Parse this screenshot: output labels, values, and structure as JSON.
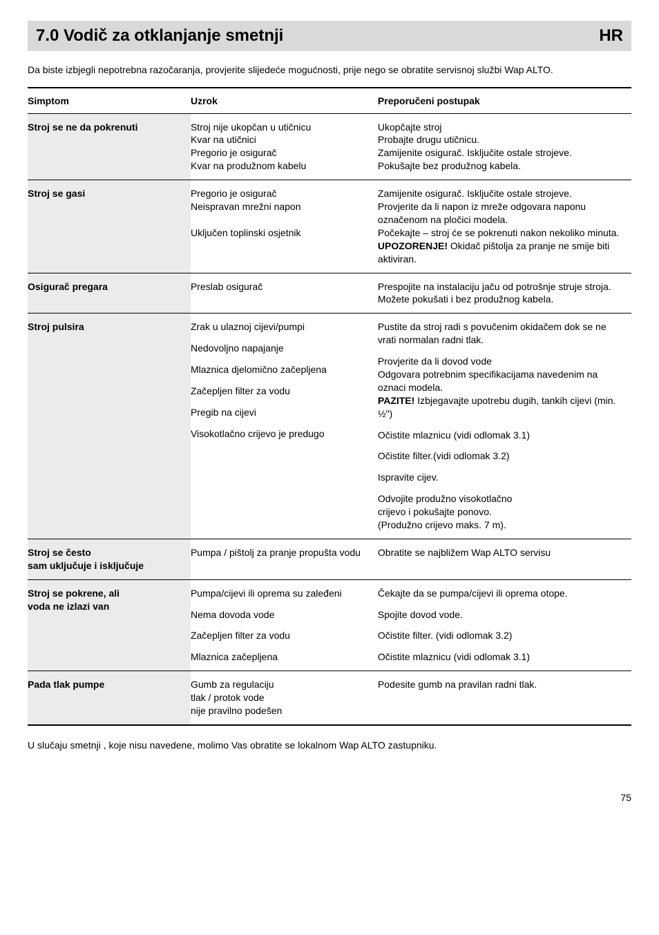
{
  "header": {
    "title": "7.0  Vodič za otklanjanje smetnji",
    "lang": "HR"
  },
  "intro": "Da biste izbjegli nepotrebna razočaranja, provjerite slijedeće mogućnosti, prije nego se obratite servisnoj službi Wap ALTO.",
  "table": {
    "headers": {
      "c1": "Simptom",
      "c2": "Uzrok",
      "c3": "Preporučeni postupak"
    },
    "rows": [
      {
        "sym": "Stroj se ne da pokrenuti",
        "uzrok": [
          "Stroj nije ukopčan u utičnicu",
          "Kvar na utičnici",
          "Pregorio je osigurač",
          "Kvar na produžnom kabelu"
        ],
        "post": [
          "Ukopčajte stroj",
          "Probajte drugu utičnicu.",
          "Zamijenite osigurač. Isključite ostale strojeve.",
          "Pokušajte bez produžnog kabela."
        ]
      },
      {
        "sym": "Stroj se gasi",
        "uzrok": [
          "Pregorio je osigurač",
          "Neispravan mrežni napon",
          "",
          "Uključen toplinski osjetnik"
        ],
        "post_html": "Zamijenite osigurač. Isključite ostale strojeve.<br>Provjerite da li napon iz mreže odgovara naponu označenom na pločici modela.<br>Počekajte – stroj će se pokrenuti nakon nekoliko minuta.<br><b>UPOZORENJE!</b> Okidač  pištolja za pranje ne smije biti aktiviran."
      },
      {
        "sym": "Osigurač pregara",
        "uzrok": [
          "Preslab osigurač"
        ],
        "post": [
          "Prespojite na instalaciju jaču od potrošnje struje stroja.",
          "Možete pokušati i bez produžnog kabela."
        ]
      },
      {
        "sym": "Stroj pulsira",
        "uzrok_blocks": [
          "Zrak u ulaznoj cijevi/pumpi",
          "Nedovoljno napajanje",
          "Mlaznica djelomično začepljena",
          "Začepljen filter za vodu",
          "Pregib na cijevi",
          "Visokotlačno crijevo je predugo"
        ],
        "post_blocks_html": [
          "Pustite da stroj radi s povučenim okidačem dok se ne vrati normalan radni tlak.",
          "Provjerite da li dovod vode<br>Odgovara potrebnim specifikacijama navedenim na oznaci modela.<br><b>PAZITE!</b> Izbjegavajte upotrebu dugih, tankih cijevi (min. ½\")",
          "Očistite mlaznicu (vidi odlomak 3.1)",
          "Očistite filter.(vidi odlomak 3.2)",
          "Ispravite cijev.",
          "Odvojite produžno visokotlačno<br>crijevo i pokušajte ponovo.<br>(Produžno crijevo maks. 7 m)."
        ]
      },
      {
        "sym": "Stroj se često\nsam uključuje i isključuje",
        "uzrok": [
          "Pumpa / pištolj za pranje propušta vodu"
        ],
        "post": [
          "Obratite se najbližem Wap ALTO servisu"
        ]
      },
      {
        "sym": "Stroj se pokrene, ali\nvoda ne izlazi van",
        "uzrok_blocks": [
          "Pumpa/cijevi ili oprema su zaleđeni",
          "Nema dovoda vode",
          "Začepljen filter za vodu",
          "Mlaznica začepljena"
        ],
        "post_blocks_html": [
          "Čekajte da se pumpa/cijevi ili oprema otope.",
          "Spojite dovod vode.",
          "Očistite filter. (vidi odlomak 3.2)",
          "Očistite mlaznicu (vidi odlomak 3.1)"
        ]
      },
      {
        "sym": "Pada tlak pumpe",
        "uzrok": [
          "Gumb za regulaciju",
          "tlak / protok vode",
          "nije pravilno podešen"
        ],
        "post": [
          "Podesite gumb na pravilan radni tlak."
        ]
      }
    ]
  },
  "outro": "U slučaju smetnji , koje nisu navedene, molimo Vas obratite se lokalnom Wap ALTO zastupniku.",
  "page": "75"
}
